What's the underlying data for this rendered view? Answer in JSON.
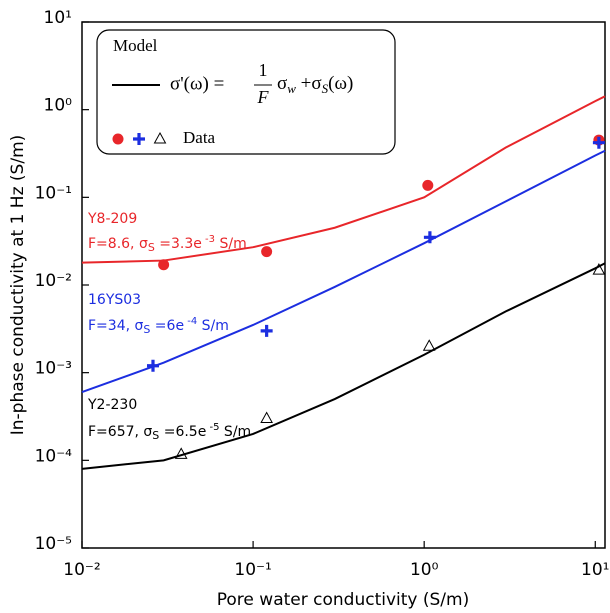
{
  "chart_data": {
    "type": "line",
    "x_label": "Pore water conductivity (S/m)",
    "y_label": "In-phase conductivity at 1 Hz (S/m)",
    "log_x": true,
    "log_y": true,
    "xlim": [
      0.01,
      11.4
    ],
    "ylim": [
      1e-05,
      10
    ],
    "xticks": [
      {
        "value": 0.01,
        "label": "10⁻²"
      },
      {
        "value": 0.1,
        "label": "10⁻¹"
      },
      {
        "value": 1,
        "label": "10⁰"
      },
      {
        "value": 10,
        "label": "10¹"
      }
    ],
    "yticks": [
      {
        "value": 1e-05,
        "label": "10⁻⁵"
      },
      {
        "value": 0.0001,
        "label": "10⁻⁴"
      },
      {
        "value": 0.001,
        "label": "10⁻³"
      },
      {
        "value": 0.01,
        "label": "10⁻²"
      },
      {
        "value": 0.1,
        "label": "10⁻¹"
      },
      {
        "value": 1,
        "label": "10⁰"
      },
      {
        "value": 10,
        "label": "10¹"
      }
    ],
    "legend": {
      "model": "Model",
      "data": "Data",
      "formula": {
        "lhs": "σ'(ω) =",
        "num": "1",
        "den": "F",
        "rhs": [
          "σ",
          "w",
          " +σ",
          "S",
          "(ω)"
        ]
      }
    },
    "annotations": [
      {
        "name": "Y8-209",
        "params": [
          "F=8.6,  σ",
          "S",
          " =3.3e",
          " -3",
          " S/m"
        ],
        "color": "#e8262a"
      },
      {
        "name": "16YS03",
        "params": [
          "F=34,  σ",
          "S",
          " =6e",
          " -4",
          " S/m"
        ],
        "color": "#1c2ee0"
      },
      {
        "name": "Y2-230",
        "params": [
          "F=657,  σ",
          "S",
          " =6.5e",
          " -5",
          " S/m"
        ],
        "color": "#000000"
      }
    ],
    "series": [
      {
        "line": true,
        "color": "#e8262a",
        "x": [
          0.01,
          0.03,
          0.1,
          0.3,
          1,
          3,
          10,
          11.4
        ],
        "values": [
          0.018,
          0.019,
          0.027,
          0.045,
          0.1,
          0.37,
          1.25,
          1.42
        ]
      },
      {
        "line": true,
        "color": "#1c2ee0",
        "x": [
          0.01,
          0.03,
          0.1,
          0.3,
          1,
          3,
          10,
          11.4
        ],
        "values": [
          0.0006,
          0.0013,
          0.0035,
          0.0095,
          0.03,
          0.09,
          0.3,
          0.34
        ]
      },
      {
        "line": true,
        "color": "#000000",
        "x": [
          0.01,
          0.03,
          0.1,
          0.3,
          1,
          3,
          10,
          11.4
        ],
        "values": [
          8e-05,
          0.0001,
          0.0002,
          0.0005,
          0.0016,
          0.005,
          0.0155,
          0.0177
        ]
      },
      {
        "marker": "circle",
        "color": "#e8262a",
        "x": [
          0.03,
          0.12,
          1.05,
          10.5
        ],
        "values": [
          0.017,
          0.024,
          0.137,
          0.45
        ]
      },
      {
        "marker": "plus",
        "color": "#1c2ee0",
        "x": [
          0.026,
          0.12,
          1.08,
          10.5
        ],
        "values": [
          0.0012,
          0.003,
          0.035,
          0.42
        ]
      },
      {
        "marker": "triangle",
        "color": "#000000",
        "x": [
          0.038,
          0.12,
          1.07,
          10.5
        ],
        "values": [
          0.000117,
          0.0003,
          0.002,
          0.0148
        ]
      }
    ]
  }
}
